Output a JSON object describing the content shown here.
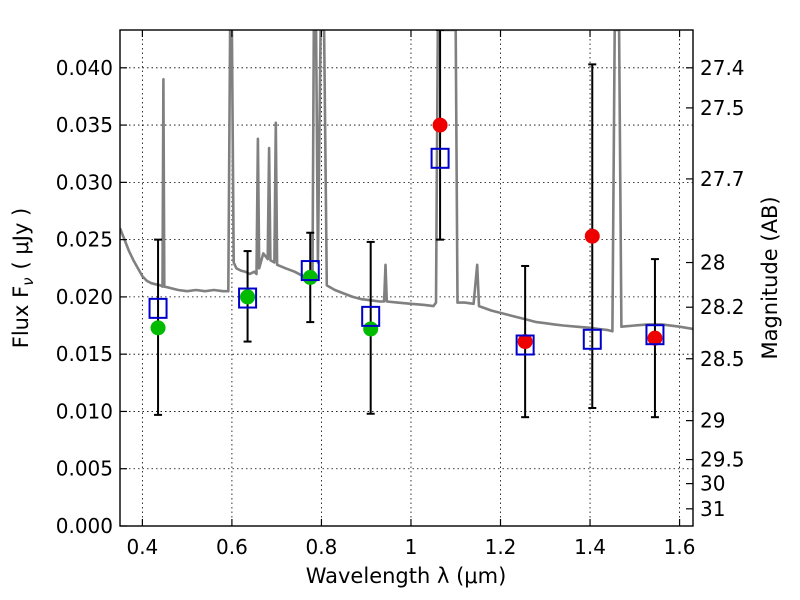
{
  "chart_data": {
    "type": "scatter",
    "xlabel": "Wavelength  λ (μm)",
    "ylabel": "Flux  F",
    "ylabel_sub": "ν",
    "ylabel_unit": "( μJy )",
    "y2label": "Magnitude (AB)",
    "xlim": [
      0.35,
      1.63
    ],
    "ylim": [
      0.0,
      0.0433
    ],
    "grid": true,
    "x_ticks": [
      0.4,
      0.6,
      0.8,
      1.0,
      1.2,
      1.4,
      1.6
    ],
    "x_tick_labels": [
      "0.4",
      "0.6",
      "0.8",
      "1",
      "1.2",
      "1.4",
      "1.6"
    ],
    "y_ticks": [
      0.0,
      0.005,
      0.01,
      0.015,
      0.02,
      0.025,
      0.03,
      0.035,
      0.04
    ],
    "y_tick_labels": [
      "0.000",
      "0.005",
      "0.010",
      "0.015",
      "0.020",
      "0.025",
      "0.030",
      "0.035",
      "0.040"
    ],
    "y2_ticks": [
      {
        "label": "27.4",
        "flux": 0.04
      },
      {
        "label": "27.5",
        "flux": 0.0365
      },
      {
        "label": "27.7",
        "flux": 0.0303
      },
      {
        "label": "28",
        "flux": 0.023
      },
      {
        "label": "28.2",
        "flux": 0.0191
      },
      {
        "label": "28.5",
        "flux": 0.0146
      },
      {
        "label": "29",
        "flux": 0.0092
      },
      {
        "label": "29.5",
        "flux": 0.0058
      },
      {
        "label": "30",
        "flux": 0.0037
      },
      {
        "label": "31",
        "flux": 0.0015
      }
    ],
    "series": [
      {
        "kind": "observed_errorbars",
        "color": "#000000",
        "points": [
          {
            "x": 0.435,
            "low": 0.0097,
            "high": 0.025
          },
          {
            "x": 0.635,
            "low": 0.0161,
            "high": 0.024
          },
          {
            "x": 0.775,
            "low": 0.0178,
            "high": 0.0256
          },
          {
            "x": 0.91,
            "low": 0.0098,
            "high": 0.0248
          },
          {
            "x": 1.065,
            "low": 0.025,
            "high": 0.0433
          },
          {
            "x": 1.255,
            "low": 0.0095,
            "high": 0.0227
          },
          {
            "x": 1.405,
            "low": 0.0103,
            "high": 0.0403
          },
          {
            "x": 1.545,
            "low": 0.0095,
            "high": 0.0233
          }
        ]
      },
      {
        "kind": "observed_points",
        "points": [
          {
            "x": 0.435,
            "y": 0.0173,
            "color": "#00bb00"
          },
          {
            "x": 0.635,
            "y": 0.02,
            "color": "#00bb00"
          },
          {
            "x": 0.775,
            "y": 0.0217,
            "color": "#00bb00"
          },
          {
            "x": 0.91,
            "y": 0.0172,
            "color": "#00bb00"
          },
          {
            "x": 1.065,
            "y": 0.035,
            "color": "#ee0000"
          },
          {
            "x": 1.255,
            "y": 0.0161,
            "color": "#ee0000"
          },
          {
            "x": 1.405,
            "y": 0.0253,
            "color": "#ee0000"
          },
          {
            "x": 1.545,
            "y": 0.0164,
            "color": "#ee0000"
          }
        ]
      },
      {
        "kind": "model_bandpass_squares",
        "color": "#0000cc",
        "points": [
          {
            "x": 0.435,
            "y": 0.019
          },
          {
            "x": 0.635,
            "y": 0.0199
          },
          {
            "x": 0.775,
            "y": 0.0223
          },
          {
            "x": 0.91,
            "y": 0.0183
          },
          {
            "x": 1.065,
            "y": 0.0321
          },
          {
            "x": 1.255,
            "y": 0.0158
          },
          {
            "x": 1.405,
            "y": 0.0163
          },
          {
            "x": 1.545,
            "y": 0.0167
          }
        ]
      },
      {
        "kind": "model_spectrum",
        "color": "#808080",
        "points": [
          [
            0.35,
            0.026
          ],
          [
            0.36,
            0.025
          ],
          [
            0.37,
            0.024
          ],
          [
            0.38,
            0.0232
          ],
          [
            0.39,
            0.0225
          ],
          [
            0.4,
            0.0218
          ],
          [
            0.41,
            0.0214
          ],
          [
            0.42,
            0.0212
          ],
          [
            0.43,
            0.0211
          ],
          [
            0.44,
            0.021
          ],
          [
            0.445,
            0.0209
          ],
          [
            0.447,
            0.039
          ],
          [
            0.449,
            0.0209
          ],
          [
            0.46,
            0.0208
          ],
          [
            0.48,
            0.0206
          ],
          [
            0.5,
            0.0205
          ],
          [
            0.52,
            0.0206
          ],
          [
            0.54,
            0.0205
          ],
          [
            0.56,
            0.0206
          ],
          [
            0.58,
            0.0205
          ],
          [
            0.592,
            0.0205
          ],
          [
            0.596,
            0.0433
          ],
          [
            0.6,
            0.0433
          ],
          [
            0.604,
            0.023
          ],
          [
            0.61,
            0.0225
          ],
          [
            0.62,
            0.0223
          ],
          [
            0.63,
            0.0222
          ],
          [
            0.64,
            0.022
          ],
          [
            0.65,
            0.0222
          ],
          [
            0.655,
            0.022
          ],
          [
            0.658,
            0.0338
          ],
          [
            0.661,
            0.0225
          ],
          [
            0.67,
            0.0238
          ],
          [
            0.68,
            0.0233
          ],
          [
            0.683,
            0.033
          ],
          [
            0.686,
            0.0232
          ],
          [
            0.695,
            0.023
          ],
          [
            0.698,
            0.0352
          ],
          [
            0.701,
            0.0228
          ],
          [
            0.72,
            0.0225
          ],
          [
            0.74,
            0.0222
          ],
          [
            0.76,
            0.0218
          ],
          [
            0.77,
            0.0216
          ],
          [
            0.78,
            0.022
          ],
          [
            0.783,
            0.0433
          ],
          [
            0.788,
            0.0433
          ],
          [
            0.792,
            0.023
          ],
          [
            0.798,
            0.0433
          ],
          [
            0.806,
            0.0433
          ],
          [
            0.812,
            0.021
          ],
          [
            0.83,
            0.0206
          ],
          [
            0.85,
            0.0203
          ],
          [
            0.87,
            0.02
          ],
          [
            0.89,
            0.0198
          ],
          [
            0.91,
            0.0197
          ],
          [
            0.93,
            0.0196
          ],
          [
            0.94,
            0.0196
          ],
          [
            0.943,
            0.0228
          ],
          [
            0.946,
            0.0196
          ],
          [
            0.97,
            0.0195
          ],
          [
            1.0,
            0.0194
          ],
          [
            1.03,
            0.0193
          ],
          [
            1.05,
            0.0192
          ],
          [
            1.056,
            0.0195
          ],
          [
            1.06,
            0.0433
          ],
          [
            1.1,
            0.0433
          ],
          [
            1.104,
            0.0195
          ],
          [
            1.12,
            0.0195
          ],
          [
            1.14,
            0.0194
          ],
          [
            1.148,
            0.0228
          ],
          [
            1.152,
            0.0192
          ],
          [
            1.18,
            0.0188
          ],
          [
            1.2,
            0.0186
          ],
          [
            1.22,
            0.0184
          ],
          [
            1.24,
            0.0182
          ],
          [
            1.26,
            0.018
          ],
          [
            1.28,
            0.0178
          ],
          [
            1.3,
            0.0177
          ],
          [
            1.32,
            0.0176
          ],
          [
            1.34,
            0.0175
          ],
          [
            1.37,
            0.0174
          ],
          [
            1.4,
            0.0173
          ],
          [
            1.42,
            0.0172
          ],
          [
            1.44,
            0.0171
          ],
          [
            1.45,
            0.017
          ],
          [
            1.455,
            0.0433
          ],
          [
            1.465,
            0.0433
          ],
          [
            1.47,
            0.0174
          ],
          [
            1.5,
            0.0175
          ],
          [
            1.53,
            0.0176
          ],
          [
            1.56,
            0.0176
          ],
          [
            1.6,
            0.0174
          ],
          [
            1.63,
            0.0172
          ]
        ]
      }
    ]
  }
}
